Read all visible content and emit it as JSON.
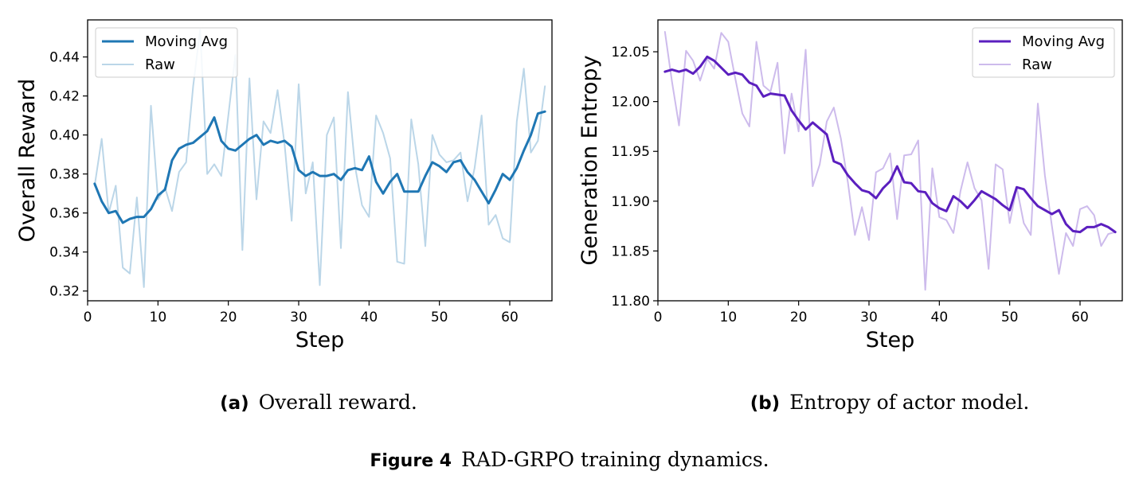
{
  "chart_data": [
    {
      "type": "line",
      "xlabel": "Step",
      "ylabel": "Overall Reward",
      "xlim": [
        0,
        66
      ],
      "ylim": [
        0.315,
        0.459
      ],
      "xticks": [
        0,
        10,
        20,
        30,
        40,
        50,
        60
      ],
      "yticks": [
        0.32,
        0.34,
        0.36,
        0.38,
        0.4,
        0.42,
        0.44
      ],
      "tick_decimals": 2,
      "legend_position": "top-left",
      "grid": false,
      "x": [
        1,
        2,
        3,
        4,
        5,
        6,
        7,
        8,
        9,
        10,
        11,
        12,
        13,
        14,
        15,
        16,
        17,
        18,
        19,
        20,
        21,
        22,
        23,
        24,
        25,
        26,
        27,
        28,
        29,
        30,
        31,
        32,
        33,
        34,
        35,
        36,
        37,
        38,
        39,
        40,
        41,
        42,
        43,
        44,
        45,
        46,
        47,
        48,
        49,
        50,
        51,
        52,
        53,
        54,
        55,
        56,
        57,
        58,
        59,
        60,
        61,
        62,
        63,
        64,
        65
      ],
      "series": [
        {
          "name": "Moving Avg",
          "color": "#1f77b4",
          "width": 3,
          "values": [
            0.375,
            0.366,
            0.36,
            0.361,
            0.355,
            0.357,
            0.358,
            0.358,
            0.362,
            0.369,
            0.372,
            0.387,
            0.393,
            0.395,
            0.396,
            0.399,
            0.402,
            0.409,
            0.397,
            0.393,
            0.392,
            0.395,
            0.398,
            0.4,
            0.395,
            0.397,
            0.396,
            0.397,
            0.394,
            0.382,
            0.379,
            0.381,
            0.379,
            0.379,
            0.38,
            0.377,
            0.382,
            0.383,
            0.382,
            0.389,
            0.376,
            0.37,
            0.376,
            0.38,
            0.371,
            0.371,
            0.371,
            0.379,
            0.386,
            0.384,
            0.381,
            0.386,
            0.387,
            0.381,
            0.377,
            0.371,
            0.365,
            0.372,
            0.38,
            0.377,
            0.383,
            0.392,
            0.4,
            0.411,
            0.412
          ]
        },
        {
          "name": "Raw",
          "color": "#1f77b4",
          "opacity": 0.3,
          "width": 2,
          "values": [
            0.374,
            0.398,
            0.36,
            0.374,
            0.332,
            0.329,
            0.368,
            0.322,
            0.415,
            0.367,
            0.373,
            0.361,
            0.381,
            0.386,
            0.425,
            0.454,
            0.38,
            0.385,
            0.379,
            0.41,
            0.441,
            0.341,
            0.429,
            0.367,
            0.407,
            0.401,
            0.423,
            0.395,
            0.356,
            0.426,
            0.37,
            0.386,
            0.323,
            0.4,
            0.409,
            0.342,
            0.422,
            0.384,
            0.364,
            0.358,
            0.41,
            0.401,
            0.388,
            0.335,
            0.334,
            0.408,
            0.385,
            0.343,
            0.4,
            0.39,
            0.386,
            0.387,
            0.391,
            0.366,
            0.383,
            0.41,
            0.354,
            0.359,
            0.347,
            0.345,
            0.407,
            0.434,
            0.391,
            0.397,
            0.425
          ]
        }
      ]
    },
    {
      "type": "line",
      "xlabel": "Step",
      "ylabel": "Generation Entropy",
      "xlim": [
        0,
        66
      ],
      "ylim": [
        11.8,
        12.082
      ],
      "xticks": [
        0,
        10,
        20,
        30,
        40,
        50,
        60
      ],
      "yticks": [
        11.8,
        11.85,
        11.9,
        11.95,
        12.0,
        12.05
      ],
      "tick_decimals": 2,
      "legend_position": "top-right",
      "grid": false,
      "x": [
        1,
        2,
        3,
        4,
        5,
        6,
        7,
        8,
        9,
        10,
        11,
        12,
        13,
        14,
        15,
        16,
        17,
        18,
        19,
        20,
        21,
        22,
        23,
        24,
        25,
        26,
        27,
        28,
        29,
        30,
        31,
        32,
        33,
        34,
        35,
        36,
        37,
        38,
        39,
        40,
        41,
        42,
        43,
        44,
        45,
        46,
        47,
        48,
        49,
        50,
        51,
        52,
        53,
        54,
        55,
        56,
        57,
        58,
        59,
        60,
        61,
        62,
        63,
        64,
        65
      ],
      "series": [
        {
          "name": "Moving Avg",
          "color": "#5b1fbf",
          "width": 3,
          "values": [
            12.03,
            12.032,
            12.03,
            12.032,
            12.028,
            12.035,
            12.045,
            12.041,
            12.034,
            12.027,
            12.029,
            12.027,
            12.019,
            12.016,
            12.005,
            12.008,
            12.007,
            12.006,
            11.991,
            11.981,
            11.972,
            11.979,
            11.973,
            11.967,
            11.94,
            11.937,
            11.926,
            11.918,
            11.911,
            11.909,
            11.903,
            11.913,
            11.92,
            11.935,
            11.919,
            11.918,
            11.91,
            11.909,
            11.898,
            11.893,
            11.89,
            11.905,
            11.9,
            11.893,
            11.901,
            11.91,
            11.906,
            11.902,
            11.896,
            11.891,
            11.914,
            11.912,
            11.903,
            11.895,
            11.891,
            11.887,
            11.891,
            11.877,
            11.87,
            11.869,
            11.874,
            11.874,
            11.877,
            11.874,
            11.869
          ]
        },
        {
          "name": "Raw",
          "color": "#5b1fbf",
          "opacity": 0.3,
          "width": 2,
          "values": [
            12.07,
            12.02,
            11.976,
            12.051,
            12.041,
            12.021,
            12.043,
            12.033,
            12.069,
            12.06,
            12.023,
            11.988,
            11.975,
            12.06,
            12.016,
            12.01,
            12.039,
            11.948,
            12.008,
            11.97,
            12.052,
            11.915,
            11.937,
            11.98,
            11.994,
            11.963,
            11.919,
            11.866,
            11.894,
            11.861,
            11.929,
            11.933,
            11.948,
            11.882,
            11.946,
            11.947,
            11.961,
            11.811,
            11.933,
            11.884,
            11.881,
            11.868,
            11.91,
            11.939,
            11.913,
            11.901,
            11.832,
            11.937,
            11.932,
            11.878,
            11.914,
            11.878,
            11.866,
            11.998,
            11.926,
            11.875,
            11.827,
            11.868,
            11.855,
            11.892,
            11.895,
            11.886,
            11.855,
            11.867,
            11.869
          ]
        }
      ]
    }
  ],
  "captions": {
    "a_label": "(a)",
    "a_text": "Overall reward.",
    "b_label": "(b)",
    "b_text": "Entropy of actor model.",
    "figure_label": "Figure 4",
    "figure_text": "RAD-GRPO training dynamics."
  }
}
